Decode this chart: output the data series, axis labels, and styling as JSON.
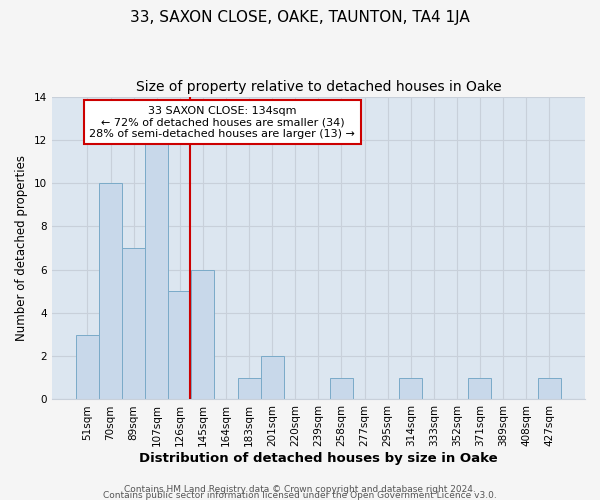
{
  "title": "33, SAXON CLOSE, OAKE, TAUNTON, TA4 1JA",
  "subtitle": "Size of property relative to detached houses in Oake",
  "xlabel": "Distribution of detached houses by size in Oake",
  "ylabel": "Number of detached properties",
  "categories": [
    "51sqm",
    "70sqm",
    "89sqm",
    "107sqm",
    "126sqm",
    "145sqm",
    "164sqm",
    "183sqm",
    "201sqm",
    "220sqm",
    "239sqm",
    "258sqm",
    "277sqm",
    "295sqm",
    "314sqm",
    "333sqm",
    "352sqm",
    "371sqm",
    "389sqm",
    "408sqm",
    "427sqm"
  ],
  "values": [
    3,
    10,
    7,
    12,
    5,
    6,
    0,
    1,
    2,
    0,
    0,
    1,
    0,
    0,
    1,
    0,
    0,
    1,
    0,
    0,
    1
  ],
  "bar_color": "#c8d8ea",
  "bar_edge_color": "#7aaac8",
  "bar_edge_width": 0.7,
  "annotation_text": "33 SAXON CLOSE: 134sqm\n← 72% of detached houses are smaller (34)\n28% of semi-detached houses are larger (13) →",
  "annotation_box_color": "#ffffff",
  "annotation_box_edge": "#cc0000",
  "red_line_color": "#cc0000",
  "ylim": [
    0,
    14
  ],
  "yticks": [
    0,
    2,
    4,
    6,
    8,
    10,
    12,
    14
  ],
  "grid_color": "#c8d0da",
  "background_color": "#dce6f0",
  "fig_background": "#f5f5f5",
  "footer_line1": "Contains HM Land Registry data © Crown copyright and database right 2024.",
  "footer_line2": "Contains public sector information licensed under the Open Government Licence v3.0.",
  "title_fontsize": 11,
  "subtitle_fontsize": 10,
  "xlabel_fontsize": 9.5,
  "ylabel_fontsize": 8.5,
  "tick_fontsize": 7.5,
  "annotation_fontsize": 8,
  "footer_fontsize": 6.5
}
